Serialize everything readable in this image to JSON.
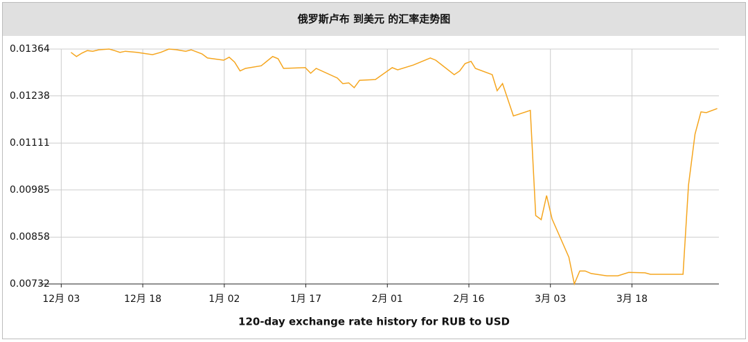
{
  "chart_data": {
    "type": "line",
    "title": "俄罗斯卢布 到美元 的汇率走势图",
    "xlabel": "120-day exchange rate history for RUB to USD",
    "color": "#f5a51d",
    "grid": true,
    "xlim": [
      -4,
      121
    ],
    "xticks": [
      {
        "value": 0,
        "label": "12月 03"
      },
      {
        "value": 15,
        "label": "12月 18"
      },
      {
        "value": 30,
        "label": "1月 02"
      },
      {
        "value": 45,
        "label": "1月 17"
      },
      {
        "value": 60,
        "label": "2月 01"
      },
      {
        "value": 75,
        "label": "2月 16"
      },
      {
        "value": 90,
        "label": "3月 03"
      },
      {
        "value": 105,
        "label": "3月 18"
      }
    ],
    "ylim": [
      0.00732,
      0.01364
    ],
    "yticks": [
      0.00732,
      0.00858,
      0.00985,
      0.01111,
      0.01238,
      0.01364
    ],
    "x": [
      1.8,
      2.8,
      3.8,
      4.8,
      5.8,
      6.9,
      8.8,
      9.8,
      10.8,
      11.8,
      13.9,
      16.8,
      18.3,
      19.8,
      21.3,
      22.9,
      23.9,
      25.9,
      26.9,
      29.9,
      30.9,
      31.9,
      32.9,
      33.9,
      36.8,
      38.9,
      39.9,
      40.9,
      44.9,
      45.9,
      46.9,
      50.8,
      51.8,
      52.9,
      53.9,
      54.9,
      57.8,
      60.9,
      61.9,
      64.8,
      67.9,
      68.9,
      72.3,
      73.3,
      74.3,
      75.4,
      76.2,
      79.3,
      80.2,
      81.2,
      83.2,
      86.3,
      87.3,
      88.3,
      89.3,
      90.3,
      93.4,
      94.4,
      95.4,
      96.4,
      97.5,
      100.4,
      102.4,
      104.4,
      107.4,
      108.4,
      110.3,
      114.4,
      115.4,
      116.6,
      117.7,
      118.7,
      120.7
    ],
    "values": [
      0.01355,
      0.01344,
      0.01353,
      0.0136,
      0.01358,
      0.01362,
      0.01364,
      0.0136,
      0.01355,
      0.01358,
      0.01355,
      0.01349,
      0.01355,
      0.01364,
      0.01362,
      0.01358,
      0.01362,
      0.01351,
      0.0134,
      0.01334,
      0.01342,
      0.01329,
      0.01305,
      0.01312,
      0.01319,
      0.01344,
      0.01338,
      0.01312,
      0.01314,
      0.01299,
      0.01312,
      0.01286,
      0.01271,
      0.01273,
      0.0126,
      0.0128,
      0.01282,
      0.01314,
      0.01308,
      0.01321,
      0.0134,
      0.01334,
      0.01295,
      0.01305,
      0.01325,
      0.01331,
      0.01312,
      0.01295,
      0.01252,
      0.01271,
      0.01184,
      0.01199,
      0.00916,
      0.00905,
      0.0097,
      0.00907,
      0.00804,
      0.00732,
      0.00767,
      0.00767,
      0.0076,
      0.00754,
      0.00754,
      0.00763,
      0.00762,
      0.00758,
      0.00758,
      0.00758,
      0.00998,
      0.01135,
      0.01195,
      0.01193,
      0.01204
    ]
  }
}
